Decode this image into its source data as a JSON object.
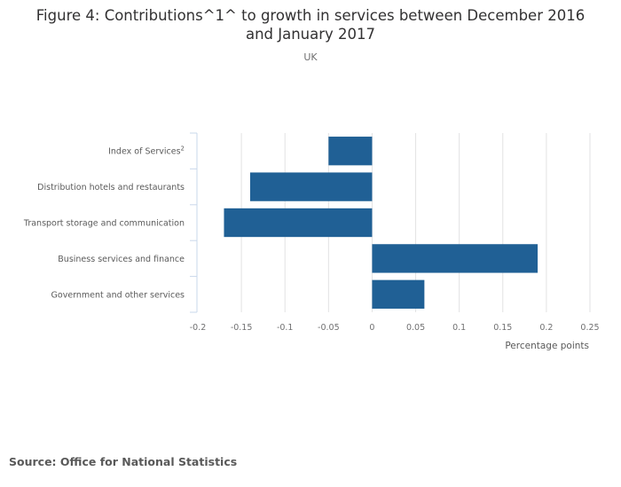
{
  "chart_data": {
    "type": "bar",
    "orientation": "horizontal",
    "title": "Figure 4: Contributions^1^ to growth in services between December 2016 and January 2017",
    "title_lines": [
      "Figure 4: Contributions^1^ to growth in services between December 2016",
      "and January 2017"
    ],
    "subtitle": "UK",
    "categories": [
      "Index of Services",
      "Distribution hotels and restaurants",
      "Transport storage and communication",
      "Business services and finance",
      "Government and other services"
    ],
    "category_superscripts": [
      "2",
      "",
      "",
      "",
      ""
    ],
    "values": [
      -0.05,
      -0.14,
      -0.17,
      0.19,
      0.06
    ],
    "xlabel": "Percentage points",
    "ylabel": "",
    "xlim": [
      -0.2,
      0.25
    ],
    "xticks": [
      -0.2,
      -0.15,
      -0.1,
      -0.05,
      0,
      0.05,
      0.1,
      0.15,
      0.2,
      0.25
    ],
    "xtick_labels": [
      "-0.2",
      "-0.15",
      "-0.1",
      "-0.05",
      "0",
      "0.05",
      "0.1",
      "0.15",
      "0.2",
      "0.25"
    ],
    "grid": true,
    "legend": "none",
    "bar_color": "#206095",
    "grid_color": "#e2e2e3",
    "axis_color": "#cad8eb"
  },
  "source": "Source: Office for National Statistics"
}
